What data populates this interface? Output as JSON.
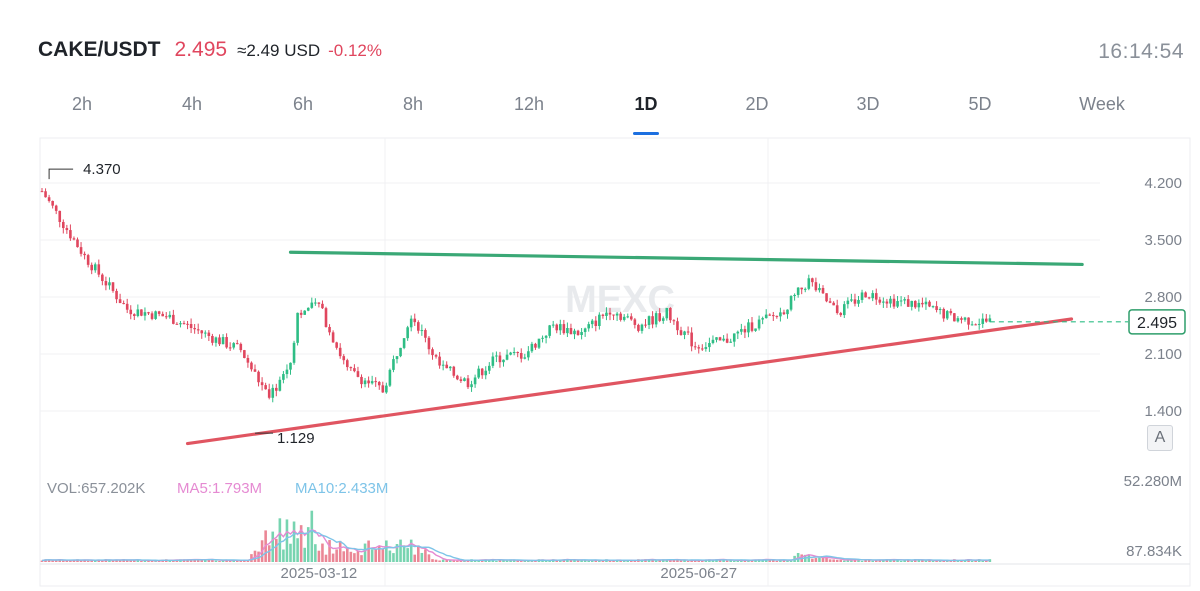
{
  "header": {
    "pair": "CAKE/USDT",
    "price": "2.495",
    "approx_usd": "≈2.49 USD",
    "change": "-0.12%",
    "time": "16:14:54"
  },
  "tabs": [
    {
      "label": "2h",
      "active": false
    },
    {
      "label": "4h",
      "active": false
    },
    {
      "label": "6h",
      "active": false
    },
    {
      "label": "8h",
      "active": false
    },
    {
      "label": "12h",
      "active": false
    },
    {
      "label": "1D",
      "active": true
    },
    {
      "label": "2D",
      "active": false
    },
    {
      "label": "3D",
      "active": false
    },
    {
      "label": "5D",
      "active": false
    },
    {
      "label": "Week",
      "active": false
    }
  ],
  "watermark": "MEXC",
  "auto_button": "A",
  "chart_data": {
    "type": "line",
    "chart_style": "candlestick",
    "price_axis": {
      "ticks": [
        4.2,
        3.5,
        2.8,
        2.1,
        1.4
      ],
      "tick_labels": [
        "4.200",
        "3.500",
        "2.800",
        "2.100",
        "1.400"
      ],
      "range": [
        0.8,
        4.6
      ]
    },
    "x_axis": {
      "tick_labels": [
        "2025-03-12",
        "2025-06-27"
      ],
      "tick_index": [
        78,
        185
      ],
      "bar_count": 268
    },
    "high_label": "4.370",
    "low_label": "1.129",
    "current_price_label": "2.495",
    "grid": true,
    "series": [
      {
        "x": [
          0,
          12,
          24,
          36,
          48,
          56,
          64,
          70,
          72,
          78,
          86,
          96,
          104,
          112,
          120,
          128,
          136,
          144,
          152,
          160,
          168,
          176,
          184,
          192,
          200,
          208,
          216,
          224,
          232,
          240,
          248,
          256,
          264
        ],
        "y": [
          4.1,
          3.3,
          2.65,
          2.55,
          2.3,
          2.15,
          1.55,
          2.0,
          2.6,
          2.7,
          1.9,
          1.65,
          2.6,
          1.95,
          1.75,
          2.05,
          2.1,
          2.45,
          2.35,
          2.65,
          2.45,
          2.6,
          2.2,
          2.25,
          2.45,
          2.6,
          3.0,
          2.6,
          2.85,
          2.75,
          2.7,
          2.55,
          2.5
        ]
      }
    ],
    "trendlines": [
      {
        "name": "resistance",
        "color": "#3aa876",
        "points": [
          [
            70,
            3.35
          ],
          [
            293,
            3.2
          ]
        ]
      },
      {
        "name": "support",
        "color": "#e05561",
        "points": [
          [
            41,
            1.0
          ],
          [
            290,
            2.53
          ]
        ]
      }
    ],
    "volume": {
      "vol_label": "VOL:657.202K",
      "ma5_label": "MA5:1.793M",
      "ma10_label": "MA10:2.433M",
      "axis_labels": [
        "52.280M",
        "87.834K"
      ],
      "max": 52.28,
      "colors": {
        "ma5": "#e58ad2",
        "ma10": "#7ec4e8"
      }
    },
    "colors": {
      "up": "#2ebd85",
      "down": "#e0465e",
      "resistance": "#3aa876",
      "support": "#e05561"
    }
  }
}
